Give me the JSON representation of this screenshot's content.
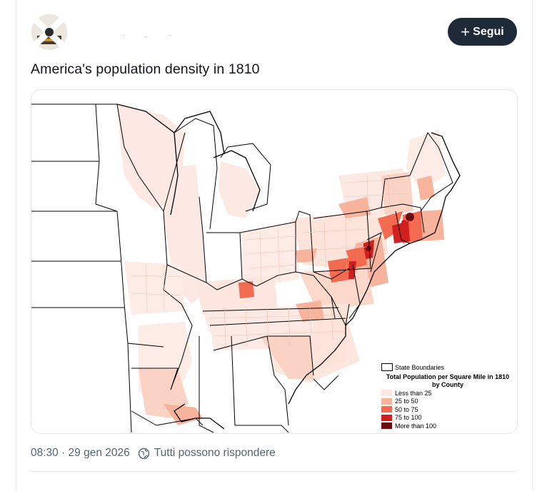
{
  "post": {
    "follow_label": "Segui",
    "text": "America's population density in 1810",
    "timestamp": "08:30 · 29 gen 2026",
    "reply_setting": "Tutti possono rispondere"
  },
  "map": {
    "legend": {
      "boundary_label": "State Boundaries",
      "title_line1": "Total Population per Square Mile in 1810",
      "title_line2": "by County",
      "items": [
        {
          "label": "Less than 25",
          "color": "#fde9e3"
        },
        {
          "label": "25 to 50",
          "color": "#f8b39c"
        },
        {
          "label": "50 to 75",
          "color": "#f26b51"
        },
        {
          "label": "75 to 100",
          "color": "#d11f1f"
        },
        {
          "label": "More than 100",
          "color": "#6e0a12"
        }
      ]
    }
  },
  "colors": {
    "follow_button_bg": "#1f2a38",
    "meta_text": "#536471"
  }
}
